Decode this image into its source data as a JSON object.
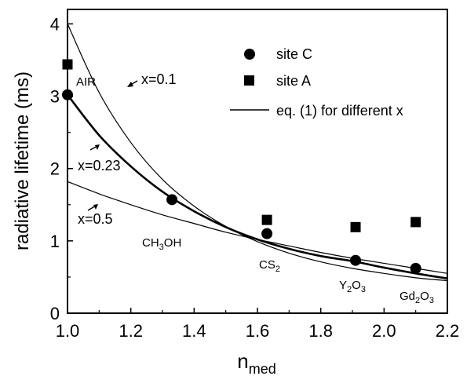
{
  "chart_data": {
    "type": "scatter",
    "xlabel_main": "n",
    "xlabel_sub": "med",
    "ylabel": "radiative lifetime (ms)",
    "xlim": [
      1.0,
      2.2
    ],
    "ylim": [
      0,
      4.2
    ],
    "x_ticks": [
      "1.0",
      "1.2",
      "1.4",
      "1.6",
      "1.8",
      "2.0",
      "2.2"
    ],
    "y_ticks": [
      "0",
      "1",
      "2",
      "3",
      "4"
    ],
    "legend": {
      "placement": "top-right",
      "items": [
        "site C",
        "site A",
        "eq. (1) for different x"
      ]
    },
    "series": [
      {
        "name": "site C",
        "marker": "circle",
        "x": [
          1.0,
          1.33,
          1.63,
          1.91,
          2.1
        ],
        "y": [
          3.02,
          1.57,
          1.1,
          0.73,
          0.62
        ]
      },
      {
        "name": "site A",
        "marker": "square",
        "x": [
          1.0,
          1.63,
          1.91,
          2.1
        ],
        "y": [
          3.44,
          1.29,
          1.19,
          1.26
        ]
      }
    ],
    "curves": [
      {
        "label": "x=0.1",
        "stroke": "thin",
        "x": [
          1.0,
          1.1,
          1.2,
          1.3,
          1.4,
          1.5,
          1.6,
          1.7,
          1.8,
          1.9,
          2.0,
          2.1,
          2.2
        ],
        "y": [
          4.0,
          3.05,
          2.36,
          1.85,
          1.48,
          1.2,
          0.99,
          0.83,
          0.71,
          0.62,
          0.55,
          0.49,
          0.45
        ]
      },
      {
        "label": "x=0.23",
        "stroke": "thick",
        "x": [
          1.0,
          1.1,
          1.2,
          1.3,
          1.4,
          1.5,
          1.6,
          1.7,
          1.8,
          1.9,
          2.0,
          2.1,
          2.2
        ],
        "y": [
          3.02,
          2.46,
          2.03,
          1.68,
          1.41,
          1.19,
          1.02,
          0.89,
          0.79,
          0.72,
          0.63,
          0.55,
          0.48
        ]
      },
      {
        "label": "x=0.5",
        "stroke": "thin",
        "x": [
          1.0,
          1.1,
          1.2,
          1.3,
          1.4,
          1.5,
          1.6,
          1.7,
          1.8,
          1.9,
          2.0,
          2.1,
          2.2
        ],
        "y": [
          1.82,
          1.65,
          1.5,
          1.36,
          1.24,
          1.12,
          1.02,
          0.93,
          0.84,
          0.76,
          0.69,
          0.62,
          0.55
        ]
      }
    ],
    "annotations": {
      "air": "AIR",
      "methanol": {
        "main": "CH",
        "sub": "3",
        "tail": "OH"
      },
      "cs2": {
        "main": "CS",
        "sub": "2"
      },
      "y2o3": {
        "a": "Y",
        "sub1": "2",
        "b": "O",
        "sub2": "3"
      },
      "gd2o3": {
        "a": "Gd",
        "sub1": "2",
        "b": "O",
        "sub2": "3"
      },
      "x01": "x=0.1",
      "x023": "x=0.23",
      "x05": "x=0.5"
    }
  }
}
